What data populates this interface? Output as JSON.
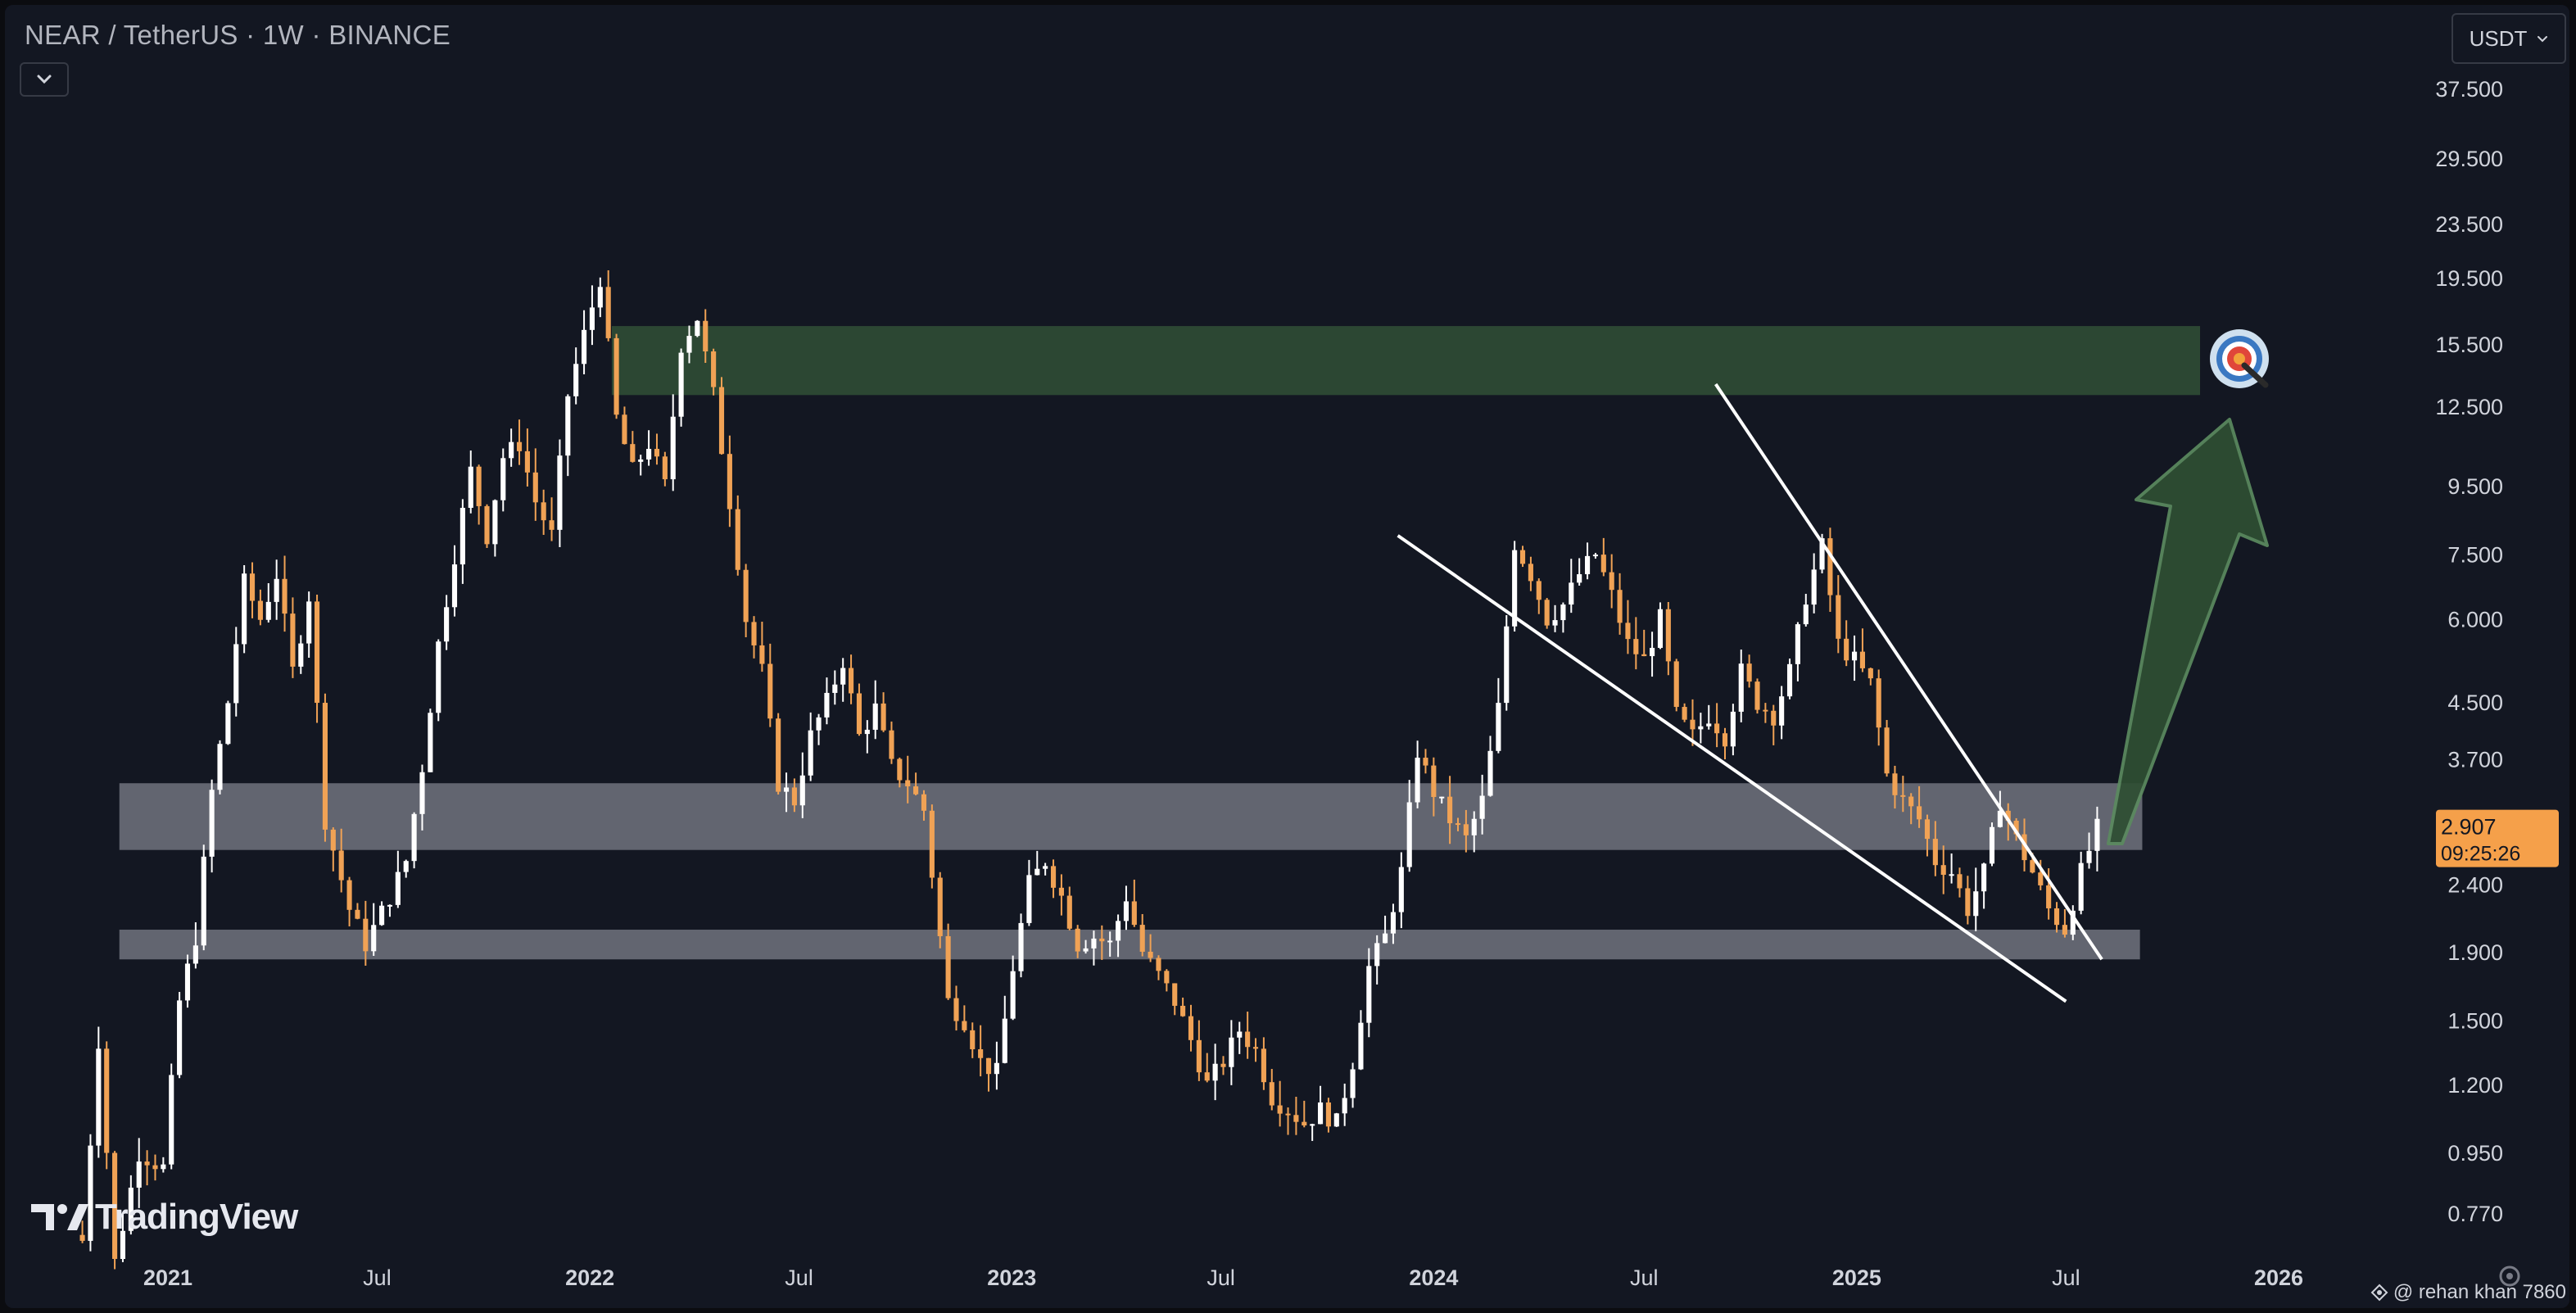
{
  "header": {
    "title": "NEAR / TetherUS · 1W · BINANCE",
    "currency_label": "USDT"
  },
  "watermark": {
    "brand": "TradingView"
  },
  "credit": {
    "text": "@ rehan khan 7860"
  },
  "price_tag": {
    "price": "2.907",
    "countdown": "09:25:26"
  },
  "colors": {
    "background": "#131722",
    "up_candle": "#ffffff",
    "down_candle": "#f0a255",
    "support_zone": "#787b86",
    "target_zone": "#2d4a35",
    "arrow": "#2f4f33",
    "price_tag_bg": "#f5a04a",
    "axis_text": "#d1d4dc"
  },
  "icons": {
    "collapse": "chevron-down-icon",
    "currency_dropdown": "chevron-down-icon",
    "target": "bullseye-target-icon",
    "settings": "gear-icon"
  },
  "chart_data": {
    "type": "candlestick",
    "scale": "log",
    "y_ticks": [
      "37.500",
      "29.500",
      "23.500",
      "19.500",
      "15.500",
      "12.500",
      "9.500",
      "7.500",
      "6.000",
      "4.500",
      "3.700",
      "2.400",
      "1.900",
      "1.500",
      "1.200",
      "0.950",
      "0.770"
    ],
    "x_ticks": [
      "2021",
      "Jul",
      "2022",
      "Jul",
      "2023",
      "Jul",
      "2024",
      "Jul",
      "2025",
      "Jul",
      "2026"
    ],
    "last_price": 2.907,
    "zones": [
      {
        "name": "target",
        "from": 13.0,
        "to": 16.5
      },
      {
        "name": "resistance-support",
        "from": 2.7,
        "to": 3.4
      },
      {
        "name": "support",
        "from": 1.85,
        "to": 2.05
      }
    ],
    "trendlines": [
      {
        "name": "falling-wedge-upper",
        "from": [
          "2024-09",
          13.5
        ],
        "to": [
          "2025-08",
          1.85
        ]
      },
      {
        "name": "falling-wedge-lower",
        "from": [
          "2023-12",
          8.0
        ],
        "to": [
          "2025-07",
          1.6
        ]
      }
    ],
    "path": [
      [
        "2020-10-19",
        0.7
      ],
      [
        "2020-11-02",
        1.4
      ],
      [
        "2020-11-16",
        0.65
      ],
      [
        "2020-12-07",
        0.95
      ],
      [
        "2020-12-28",
        0.9
      ],
      [
        "2021-01-11",
        1.6
      ],
      [
        "2021-01-25",
        2.0
      ],
      [
        "2021-02-08",
        3.3
      ],
      [
        "2021-02-22",
        4.5
      ],
      [
        "2021-03-08",
        6.8
      ],
      [
        "2021-03-22",
        6.0
      ],
      [
        "2021-04-05",
        7.0
      ],
      [
        "2021-04-19",
        5.0
      ],
      [
        "2021-05-03",
        6.5
      ],
      [
        "2021-05-17",
        3.0
      ],
      [
        "2021-06-07",
        2.2
      ],
      [
        "2021-06-21",
        1.95
      ],
      [
        "2021-07-12",
        2.3
      ],
      [
        "2021-07-26",
        2.6
      ],
      [
        "2021-08-09",
        3.6
      ],
      [
        "2021-08-23",
        5.5
      ],
      [
        "2021-09-06",
        7.5
      ],
      [
        "2021-09-20",
        10.0
      ],
      [
        "2021-10-04",
        8.0
      ],
      [
        "2021-10-18",
        10.5
      ],
      [
        "2021-11-01",
        11.0
      ],
      [
        "2021-11-15",
        9.0
      ],
      [
        "2021-11-29",
        8.0
      ],
      [
        "2021-12-13",
        13.0
      ],
      [
        "2021-12-27",
        16.0
      ],
      [
        "2022-01-10",
        19.5
      ],
      [
        "2022-01-24",
        12.0
      ],
      [
        "2022-02-07",
        10.0
      ],
      [
        "2022-02-21",
        11.0
      ],
      [
        "2022-03-07",
        9.5
      ],
      [
        "2022-03-21",
        15.5
      ],
      [
        "2022-04-04",
        17.0
      ],
      [
        "2022-04-18",
        13.0
      ],
      [
        "2022-05-02",
        9.0
      ],
      [
        "2022-05-16",
        6.0
      ],
      [
        "2022-05-30",
        5.0
      ],
      [
        "2022-06-13",
        3.4
      ],
      [
        "2022-06-27",
        3.2
      ],
      [
        "2022-07-11",
        4.0
      ],
      [
        "2022-07-25",
        4.5
      ],
      [
        "2022-08-08",
        5.2
      ],
      [
        "2022-08-22",
        4.0
      ],
      [
        "2022-09-05",
        4.4
      ],
      [
        "2022-09-19",
        3.6
      ],
      [
        "2022-10-03",
        3.4
      ],
      [
        "2022-10-17",
        3.1
      ],
      [
        "2022-11-07",
        1.6
      ],
      [
        "2022-11-21",
        1.5
      ],
      [
        "2022-12-05",
        1.3
      ],
      [
        "2022-12-19",
        1.25
      ],
      [
        "2023-01-02",
        1.8
      ],
      [
        "2023-01-16",
        2.4
      ],
      [
        "2023-01-30",
        2.6
      ],
      [
        "2023-02-13",
        2.3
      ],
      [
        "2023-02-27",
        1.95
      ],
      [
        "2023-03-13",
        2.0
      ],
      [
        "2023-03-27",
        1.95
      ],
      [
        "2023-04-10",
        2.3
      ],
      [
        "2023-04-24",
        1.9
      ],
      [
        "2023-05-08",
        1.75
      ],
      [
        "2023-05-22",
        1.6
      ],
      [
        "2023-06-05",
        1.4
      ],
      [
        "2023-06-19",
        1.2
      ],
      [
        "2023-07-03",
        1.3
      ],
      [
        "2023-07-17",
        1.45
      ],
      [
        "2023-07-31",
        1.35
      ],
      [
        "2023-08-14",
        1.15
      ],
      [
        "2023-08-28",
        1.1
      ],
      [
        "2023-09-11",
        1.05
      ],
      [
        "2023-09-25",
        1.1
      ],
      [
        "2023-10-09",
        1.05
      ],
      [
        "2023-10-23",
        1.3
      ],
      [
        "2023-11-06",
        1.8
      ],
      [
        "2023-11-20",
        2.0
      ],
      [
        "2023-12-04",
        2.5
      ],
      [
        "2023-12-18",
        3.8
      ],
      [
        "2024-01-01",
        3.3
      ],
      [
        "2024-01-15",
        3.0
      ],
      [
        "2024-01-29",
        2.8
      ],
      [
        "2024-02-12",
        3.2
      ],
      [
        "2024-02-26",
        4.4
      ],
      [
        "2024-03-11",
        7.8
      ],
      [
        "2024-03-25",
        7.0
      ],
      [
        "2024-04-08",
        6.0
      ],
      [
        "2024-04-22",
        6.3
      ],
      [
        "2024-05-06",
        7.0
      ],
      [
        "2024-05-20",
        7.5
      ],
      [
        "2024-06-03",
        6.5
      ],
      [
        "2024-06-17",
        5.5
      ],
      [
        "2024-07-01",
        5.2
      ],
      [
        "2024-07-15",
        6.0
      ],
      [
        "2024-07-29",
        4.3
      ],
      [
        "2024-08-12",
        4.0
      ],
      [
        "2024-08-26",
        4.3
      ],
      [
        "2024-09-09",
        4.0
      ],
      [
        "2024-09-23",
        5.0
      ],
      [
        "2024-10-07",
        4.5
      ],
      [
        "2024-10-21",
        4.3
      ],
      [
        "2024-11-04",
        5.0
      ],
      [
        "2024-11-18",
        6.5
      ],
      [
        "2024-12-02",
        7.7
      ],
      [
        "2024-12-16",
        5.5
      ],
      [
        "2024-12-30",
        5.2
      ],
      [
        "2025-01-13",
        4.8
      ],
      [
        "2025-01-27",
        3.5
      ],
      [
        "2025-02-10",
        3.2
      ],
      [
        "2025-02-24",
        3.0
      ],
      [
        "2025-03-10",
        2.6
      ],
      [
        "2025-03-24",
        2.5
      ],
      [
        "2025-04-07",
        2.2
      ],
      [
        "2025-04-21",
        2.5
      ],
      [
        "2025-05-05",
        3.2
      ],
      [
        "2025-05-19",
        2.8
      ],
      [
        "2025-06-02",
        2.5
      ],
      [
        "2025-06-16",
        2.2
      ],
      [
        "2025-06-30",
        2.05
      ],
      [
        "2025-07-14",
        2.5
      ],
      [
        "2025-07-28",
        2.907
      ]
    ]
  }
}
